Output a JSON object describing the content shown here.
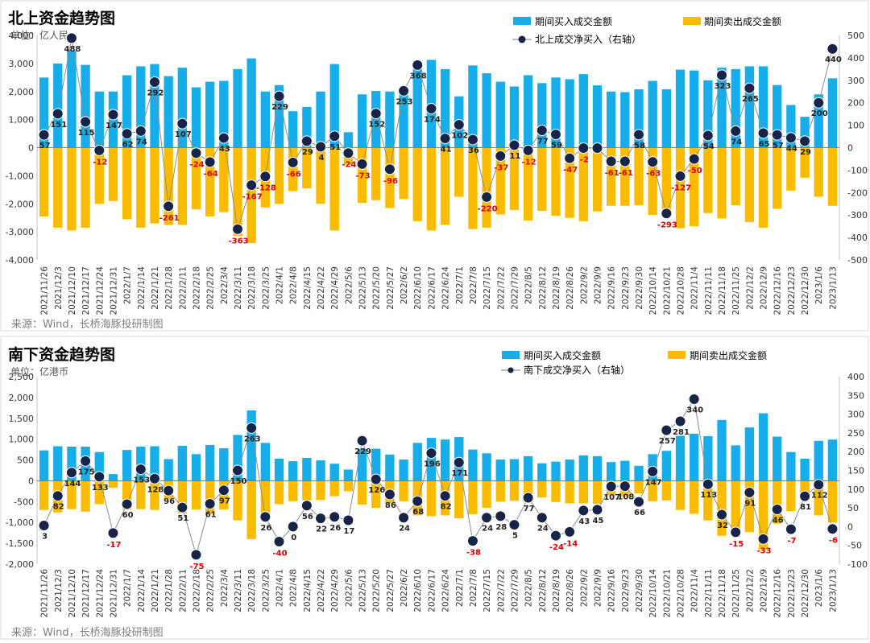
{
  "colors": {
    "buy": "#15AEEA",
    "sell": "#F9BC00",
    "net": "#17244A",
    "neg_label": "#E00000",
    "pos_label": "#222222",
    "axis": "#333333",
    "source": "#7F7F7F"
  },
  "chart_data": [
    {
      "type": "bar",
      "id": "northbound",
      "title": "北上资金趋势图",
      "unit": "单位：亿人民",
      "source": "来源：Wind，长桥海豚投研制图",
      "legend": [
        "期间买入成交金额",
        "期间卖出成交金额",
        "北上成交净买入（右轴）"
      ],
      "left_axis": {
        "range": [
          -4000,
          4000
        ],
        "ticks": [
          "4,000",
          "3,000",
          "2,000",
          "1,000",
          "0",
          "-1,000",
          "-2,000",
          "-3,000",
          "-4,000"
        ]
      },
      "right_axis": {
        "range": [
          -500,
          500
        ],
        "ticks": [
          "500",
          "400",
          "300",
          "200",
          "100",
          "0",
          "-100",
          "-200",
          "-300",
          "-400",
          "-500"
        ]
      },
      "categories": [
        "2021/11/26",
        "2021/12/3",
        "2021/12/10",
        "2021/12/17",
        "2021/12/24",
        "2021/12/31",
        "2022/1/7",
        "2022/1/14",
        "2022/1/21",
        "2022/1/28",
        "2022/2/11",
        "2022/2/18",
        "2022/2/25",
        "2022/3/4",
        "2022/3/11",
        "2022/3/18",
        "2022/3/25",
        "2022/4/1",
        "2022/4/8",
        "2022/4/15",
        "2022/4/22",
        "2022/4/29",
        "2022/5/6",
        "2022/5/13",
        "2022/5/20",
        "2022/5/27",
        "2022/6/2",
        "2022/6/10",
        "2022/6/17",
        "2022/6/24",
        "2022/7/1",
        "2022/7/8",
        "2022/7/15",
        "2022/7/22",
        "2022/7/29",
        "2022/8/5",
        "2022/8/12",
        "2022/8/19",
        "2022/8/26",
        "2022/9/2",
        "2022/9/9",
        "2022/9/16",
        "2022/9/23",
        "2022/9/30",
        "2022/10/14",
        "2022/10/21",
        "2022/10/28",
        "2022/11/4",
        "2022/11/11",
        "2022/11/18",
        "2022/11/25",
        "2022/12/2",
        "2022/12/9",
        "2022/12/16",
        "2022/12/23",
        "2022/12/30",
        "2023/1/6",
        "2023/1/13"
      ],
      "buy": [
        2500,
        3000,
        3450,
        2950,
        2000,
        2000,
        2580,
        2900,
        2980,
        2550,
        2850,
        2150,
        2350,
        2380,
        2800,
        3180,
        2000,
        2230,
        1300,
        1450,
        2000,
        2980,
        550,
        1900,
        2020,
        2000,
        2050,
        3000,
        3130,
        2800,
        1830,
        2930,
        2650,
        2350,
        2180,
        2580,
        2300,
        2500,
        2440,
        2620,
        2220,
        2000,
        1980,
        2080,
        2380,
        2080,
        2780,
        2750,
        2400,
        2850,
        2800,
        2900,
        2900,
        2230,
        1520,
        1100,
        1900,
        2470
      ],
      "sell": [
        -2450,
        -2850,
        -2950,
        -2850,
        -2000,
        -1900,
        -2550,
        -2850,
        -2700,
        -2750,
        -2750,
        -2200,
        -2450,
        -2300,
        -3150,
        -3400,
        -2130,
        -2000,
        -1550,
        -1450,
        -2000,
        -2950,
        -600,
        -1970,
        -1870,
        -2150,
        -1830,
        -2620,
        -2950,
        -2750,
        -1750,
        -2900,
        -2850,
        -2380,
        -2220,
        -2600,
        -2250,
        -2430,
        -2500,
        -2620,
        -2270,
        -2070,
        -2070,
        -2050,
        -2400,
        -2350,
        -2870,
        -2800,
        -2330,
        -2520,
        -2050,
        -2650,
        -2850,
        -2180,
        -1530,
        -1070,
        -1750,
        -2070
      ],
      "net": [
        57,
        151,
        488,
        115,
        -12,
        147,
        62,
        74,
        292,
        -261,
        107,
        -24,
        -64,
        43,
        -363,
        -167,
        -128,
        229,
        -66,
        29,
        4,
        51,
        -24,
        -73,
        152,
        -96,
        253,
        368,
        174,
        41,
        102,
        36,
        -220,
        -37,
        11,
        -12,
        77,
        59,
        -47,
        -2,
        -2,
        -61,
        -61,
        58,
        -63,
        -293,
        -127,
        -50,
        54,
        323,
        74,
        265,
        65,
        57,
        44,
        29,
        200,
        440
      ],
      "net_labels": [
        "57",
        "151",
        "488",
        "115",
        "-12",
        "147",
        "62",
        "74",
        "292",
        "-261",
        "107",
        "-24",
        "-64",
        "43",
        "-363",
        "-167",
        "-128",
        "229",
        "-66",
        "29",
        "4",
        "51",
        "-24",
        "-73",
        "152",
        "-96",
        "253",
        "368",
        "174",
        "41",
        "102",
        "36",
        "-220",
        "-37",
        "11",
        "-12",
        "77",
        "59",
        "-47",
        "-2",
        "",
        "-61",
        "-61",
        "58",
        "-63",
        "-293",
        "-127",
        "-50",
        "54",
        "323",
        "74",
        "265",
        "65",
        "57",
        "44",
        "29",
        "200",
        "440"
      ]
    },
    {
      "type": "bar",
      "id": "southbound",
      "title": "南下资金趋势图",
      "unit": "单位：亿港币",
      "source": "来源：Wind，长桥海豚投研制图",
      "legend": [
        "期间买入成交金额",
        "期间卖出成交金额",
        "南下成交净买入（右轴）"
      ],
      "left_axis": {
        "range": [
          -2000,
          2500
        ],
        "ticks": [
          "2,500",
          "2,000",
          "1,500",
          "1,000",
          "500",
          "0",
          "-500",
          "-1,000",
          "-1,500",
          "-2,000"
        ]
      },
      "right_axis": {
        "range": [
          -100,
          400
        ],
        "ticks": [
          "400",
          "350",
          "300",
          "250",
          "200",
          "150",
          "100",
          "50",
          "0",
          "-50",
          "-100"
        ]
      },
      "categories": [
        "2021/11/26",
        "2021/12/3",
        "2021/12/10",
        "2021/12/17",
        "2021/12/24",
        "2021/12/31",
        "2022/1/7",
        "2022/1/14",
        "2022/1/21",
        "2022/1/28",
        "2022/2/11",
        "2022/2/18",
        "2022/2/25",
        "2022/3/4",
        "2022/3/11",
        "2022/3/18",
        "2022/3/25",
        "2022/4/1",
        "2022/4/8",
        "2022/4/15",
        "2022/4/22",
        "2022/4/29",
        "2022/5/6",
        "2022/5/13",
        "2022/5/20",
        "2022/5/27",
        "2022/6/2",
        "2022/6/10",
        "2022/6/17",
        "2022/6/24",
        "2022/7/1",
        "2022/7/8",
        "2022/7/15",
        "2022/7/22",
        "2022/7/29",
        "2022/8/5",
        "2022/8/12",
        "2022/8/19",
        "2022/8/26",
        "2022/9/2",
        "2022/9/9",
        "2022/9/16",
        "2022/9/23",
        "2022/9/30",
        "2022/10/14",
        "2022/10/21",
        "2022/10/28",
        "2022/11/4",
        "2022/11/11",
        "2022/11/18",
        "2022/11/25",
        "2022/12/2",
        "2022/12/9",
        "2022/12/16",
        "2022/12/23",
        "2022/12/30",
        "2023/1/6",
        "2023/1/13"
      ],
      "buy": [
        730,
        830,
        820,
        820,
        690,
        160,
        740,
        820,
        830,
        520,
        840,
        640,
        860,
        780,
        1100,
        1690,
        910,
        530,
        470,
        550,
        490,
        410,
        270,
        760,
        770,
        630,
        510,
        910,
        1030,
        990,
        1050,
        750,
        660,
        510,
        520,
        590,
        420,
        460,
        510,
        610,
        590,
        450,
        480,
        360,
        640,
        720,
        1080,
        1130,
        1070,
        1460,
        850,
        1280,
        1620,
        1060,
        690,
        530,
        960,
        990
      ],
      "sell": [
        -700,
        -760,
        -680,
        -740,
        -560,
        -170,
        -690,
        -680,
        -700,
        -430,
        -780,
        -690,
        -800,
        -690,
        -950,
        -1400,
        -880,
        -560,
        -490,
        -470,
        -460,
        -370,
        -250,
        -570,
        -650,
        -540,
        -490,
        -830,
        -850,
        -830,
        -900,
        -800,
        -650,
        -500,
        -480,
        -520,
        -400,
        -510,
        -540,
        -540,
        -550,
        -350,
        -380,
        -300,
        -490,
        -470,
        -700,
        -790,
        -950,
        -1320,
        -1150,
        -1230,
        -1650,
        -1030,
        -730,
        -450,
        -830,
        -1000
      ],
      "net": [
        3,
        82,
        144,
        175,
        133,
        -17,
        60,
        153,
        128,
        96,
        51,
        -75,
        61,
        97,
        150,
        263,
        26,
        -40,
        0,
        56,
        22,
        26,
        17,
        229,
        126,
        86,
        24,
        68,
        196,
        82,
        171,
        -38,
        24,
        28,
        5,
        77,
        24,
        -24,
        -14,
        43,
        45,
        107,
        108,
        66,
        147,
        257,
        281,
        340,
        113,
        32,
        -15,
        91,
        -33,
        46,
        -7,
        81,
        112,
        -6
      ],
      "net_labels": [
        "3",
        "82",
        "144",
        "175",
        "133",
        "-17",
        "60",
        "153",
        "128",
        "96",
        "51",
        "-75",
        "61",
        "97",
        "150",
        "263",
        "26",
        "-40",
        "0",
        "56",
        "22",
        "26",
        "17",
        "229",
        "126",
        "86",
        "24",
        "68",
        "196",
        "82",
        "171",
        "-38",
        "24",
        "28",
        "5",
        "77",
        "24",
        "-24",
        "-14",
        "43",
        "45",
        "107",
        "108",
        "66",
        "147",
        "257",
        "281",
        "340",
        "113",
        "32",
        "-15",
        "91",
        "-33",
        "46",
        "-7",
        "81",
        "112",
        "-6"
      ]
    }
  ]
}
